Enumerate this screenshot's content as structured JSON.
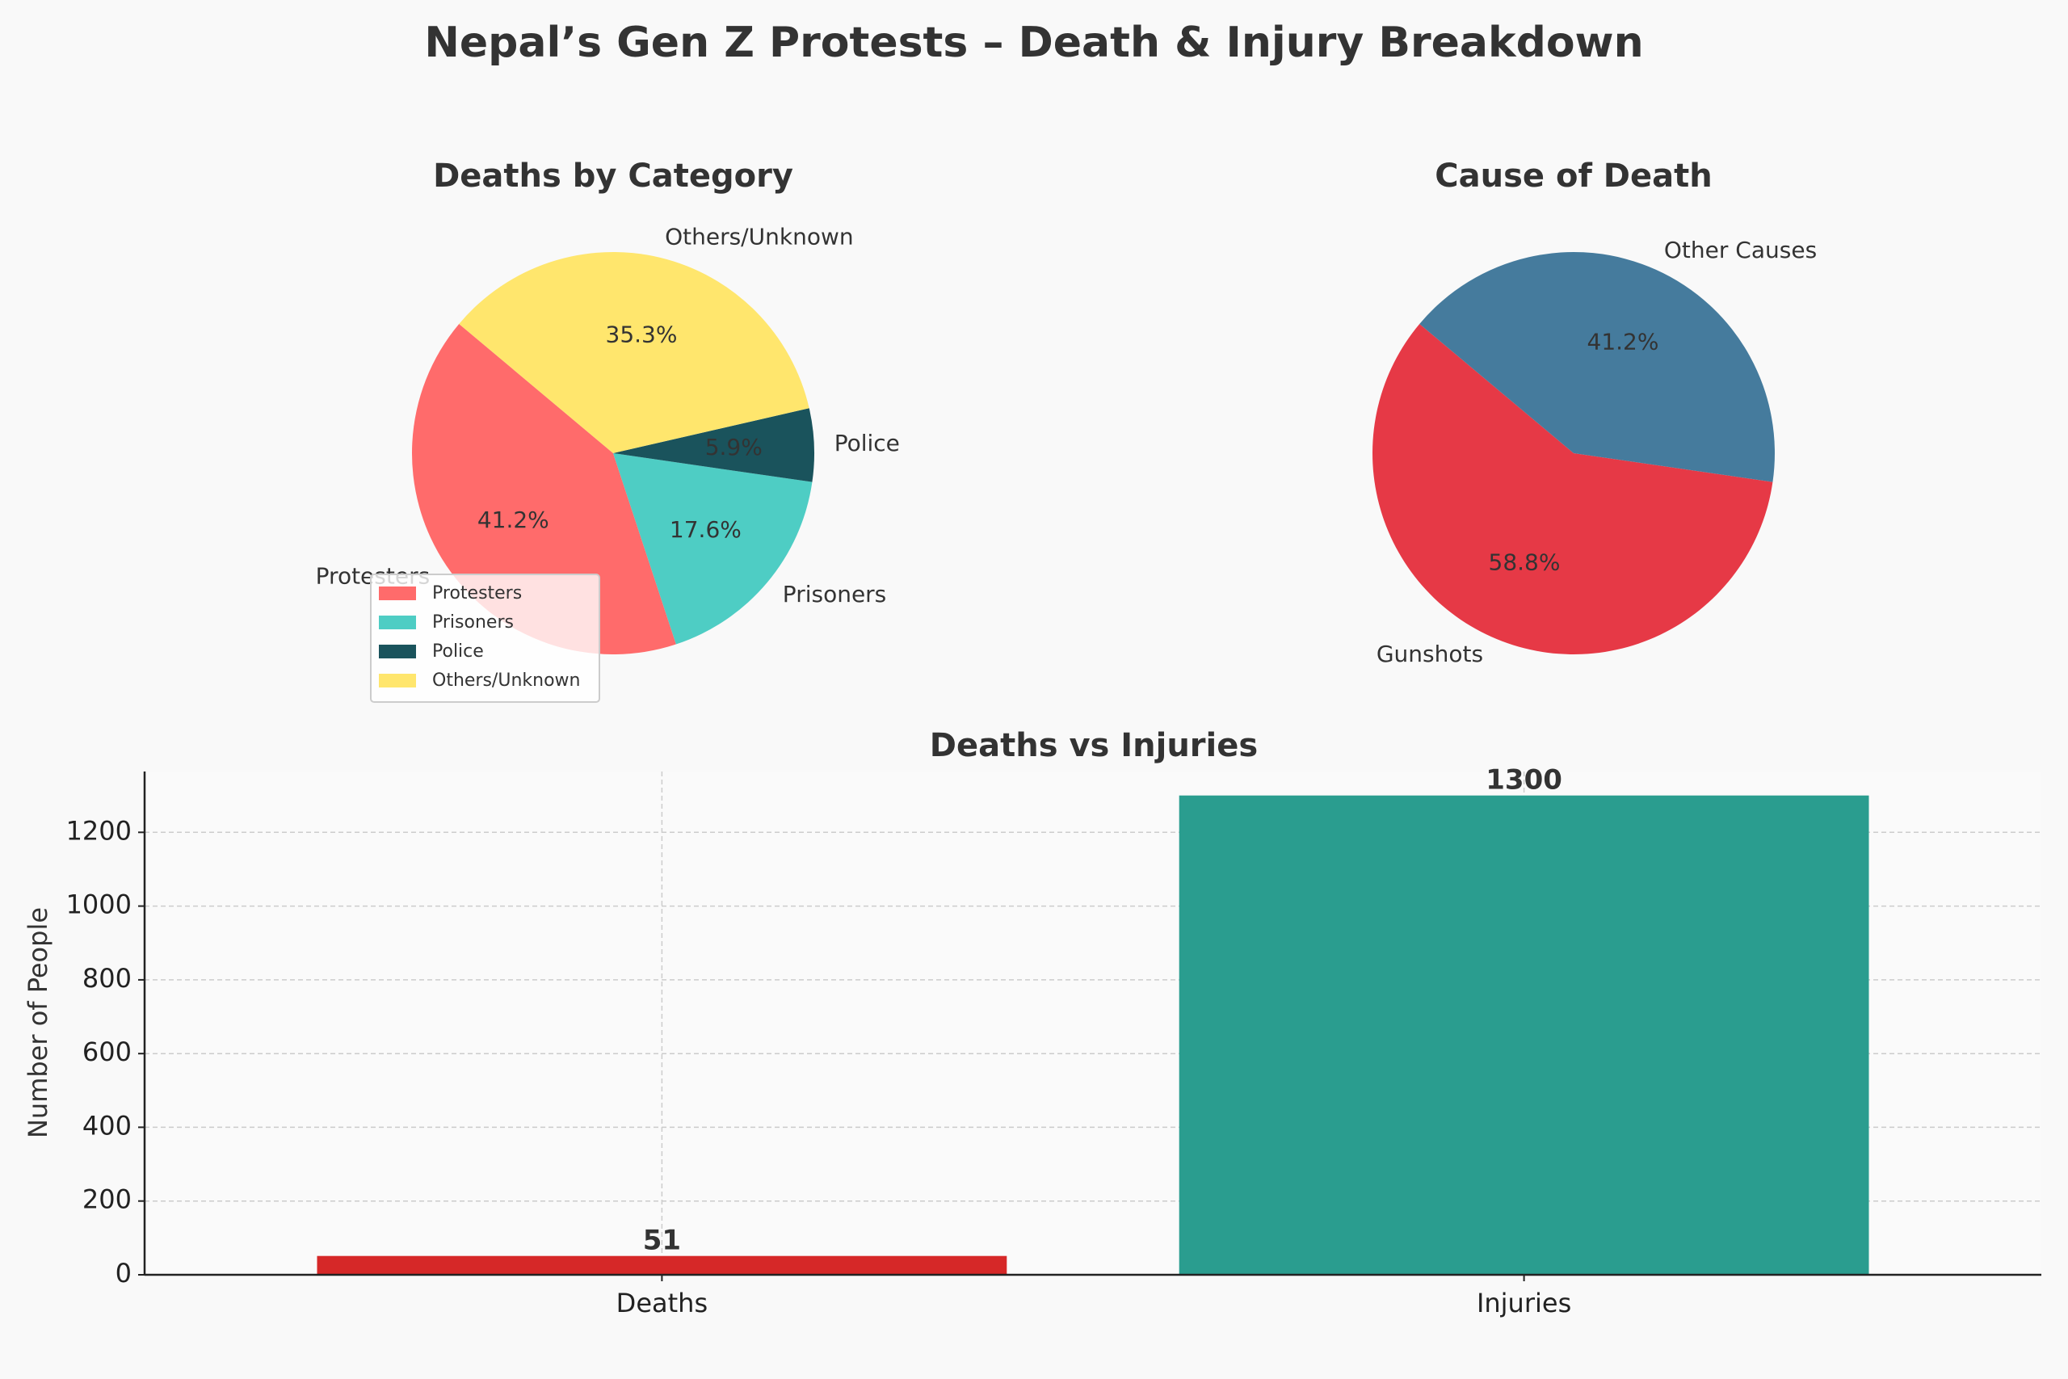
{
  "figure": {
    "title": "Nepal’s Gen Z Protests – Death & Injury Breakdown"
  },
  "chart_data": [
    {
      "type": "pie",
      "title": "Deaths by Category",
      "labels": [
        "Protesters",
        "Prisoners",
        "Police",
        "Others/Unknown"
      ],
      "values": [
        21,
        9,
        3,
        18
      ],
      "percent_labels": [
        "41.2%",
        "17.6%",
        "5.9%",
        "35.3%"
      ],
      "colors": [
        "#ff6b6b",
        "#4ecdc4",
        "#1a535c",
        "#ffe66d"
      ],
      "start_angle_deg": 140,
      "legend": {
        "placement": "lower-left",
        "entries": [
          "Protesters",
          "Prisoners",
          "Police",
          "Others/Unknown"
        ]
      }
    },
    {
      "type": "pie",
      "title": "Cause of Death",
      "labels": [
        "Gunshots",
        "Other Causes"
      ],
      "values": [
        30,
        21
      ],
      "percent_labels": [
        "58.8%",
        "41.2%"
      ],
      "colors": [
        "#e63946",
        "#457b9d"
      ],
      "start_angle_deg": 140
    },
    {
      "type": "bar",
      "title": "Deaths vs Injuries",
      "categories": [
        "Deaths",
        "Injuries"
      ],
      "values": [
        51,
        1300
      ],
      "value_labels": [
        "51",
        "1300"
      ],
      "colors": [
        "#d62828",
        "#2a9d8f"
      ],
      "ylabel": "Number of People",
      "xlabel": "",
      "ylim": [
        0,
        1365
      ],
      "yticks": [
        0,
        200,
        400,
        600,
        800,
        1000,
        1200
      ],
      "grid": true
    }
  ]
}
